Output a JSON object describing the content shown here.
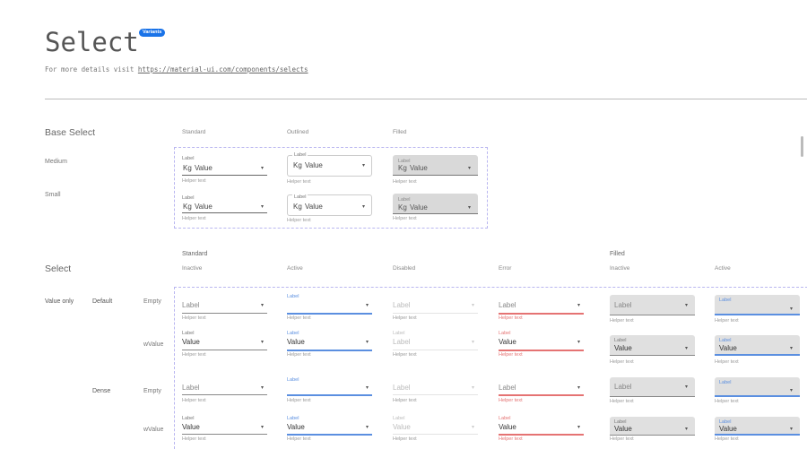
{
  "header": {
    "title": "Select",
    "badge": "Variants",
    "subtitle_prefix": "For more details visit ",
    "link": "https://material-ui.com/components/selects"
  },
  "colors": {
    "accent": "#5b8fe0",
    "error": "#e57373",
    "filled_bg": "#e0e0e0",
    "badge": "#1a73e8",
    "dashed_border": "#b9b6f0"
  },
  "icons": {
    "dropdown": "caret-down-icon"
  },
  "base": {
    "heading": "Base Select",
    "columns": [
      "Standard",
      "Outlined",
      "Filled"
    ],
    "rows": [
      {
        "name": "Medium",
        "fields": [
          {
            "label": "Label",
            "prefix": "Kg",
            "value": "Value",
            "helper": "Helper text"
          },
          {
            "label": "Label",
            "prefix": "Kg",
            "value": "Value",
            "helper": "Helper text"
          },
          {
            "label": "Label",
            "prefix": "Kg",
            "value": "Value",
            "helper": "Helper text"
          }
        ]
      },
      {
        "name": "Small",
        "fields": [
          {
            "label": "Label",
            "prefix": "Kg",
            "value": "Value",
            "helper": "Helper text"
          },
          {
            "label": "Label",
            "prefix": "Kg",
            "value": "Value",
            "helper": "Helper text"
          },
          {
            "label": "Label",
            "prefix": "Kg",
            "value": "Value",
            "helper": "Helper text"
          }
        ]
      }
    ]
  },
  "select": {
    "heading": "Select",
    "groups": [
      "Standard",
      "Filled"
    ],
    "columns": [
      "Inactive",
      "Active",
      "Disabled",
      "Error",
      "Inactive",
      "Active"
    ],
    "row_group": "Value only",
    "rows": [
      {
        "density": "Default",
        "state": "Empty",
        "fields": [
          {
            "label": "Label",
            "value": "",
            "helper": "Helper text"
          },
          {
            "label": "Label",
            "value": "",
            "helper": "Helper text"
          },
          {
            "label": "Label",
            "value": "",
            "helper": "Helper text"
          },
          {
            "label": "Label",
            "value": "",
            "helper": "Helper text"
          },
          {
            "label": "Label",
            "value": "",
            "helper": "Helper text"
          },
          {
            "label": "Label",
            "value": "",
            "helper": "Helper text"
          }
        ]
      },
      {
        "density": "",
        "state": "wValue",
        "fields": [
          {
            "label": "Label",
            "value": "Value",
            "helper": "Helper text"
          },
          {
            "label": "Label",
            "value": "Value",
            "helper": "Helper text"
          },
          {
            "label": "Label",
            "value": "Label",
            "helper": "Helper text"
          },
          {
            "label": "Label",
            "value": "Value",
            "helper": "Helper text"
          },
          {
            "label": "Label",
            "value": "Value",
            "helper": "Helper text"
          },
          {
            "label": "Label",
            "value": "Value",
            "helper": "Helper text"
          }
        ]
      },
      {
        "density": "Dense",
        "state": "Empty",
        "fields": [
          {
            "label": "Label",
            "value": "",
            "helper": "Helper text"
          },
          {
            "label": "Label",
            "value": "",
            "helper": "Helper text"
          },
          {
            "label": "Label",
            "value": "",
            "helper": "Helper text"
          },
          {
            "label": "Label",
            "value": "",
            "helper": "Helper text"
          },
          {
            "label": "Label",
            "value": "",
            "helper": "Helper text"
          },
          {
            "label": "Label",
            "value": "",
            "helper": "Helper text"
          }
        ]
      },
      {
        "density": "",
        "state": "wValue",
        "fields": [
          {
            "label": "Label",
            "value": "Value",
            "helper": "Helper text"
          },
          {
            "label": "Label",
            "value": "Value",
            "helper": "Helper text"
          },
          {
            "label": "Label",
            "value": "Value",
            "helper": "Helper text"
          },
          {
            "label": "Label",
            "value": "Value",
            "helper": "Helper text"
          },
          {
            "label": "Label",
            "value": "Value",
            "helper": "Helper text"
          },
          {
            "label": "Label",
            "value": "Value",
            "helper": "Helper text"
          }
        ]
      }
    ]
  }
}
